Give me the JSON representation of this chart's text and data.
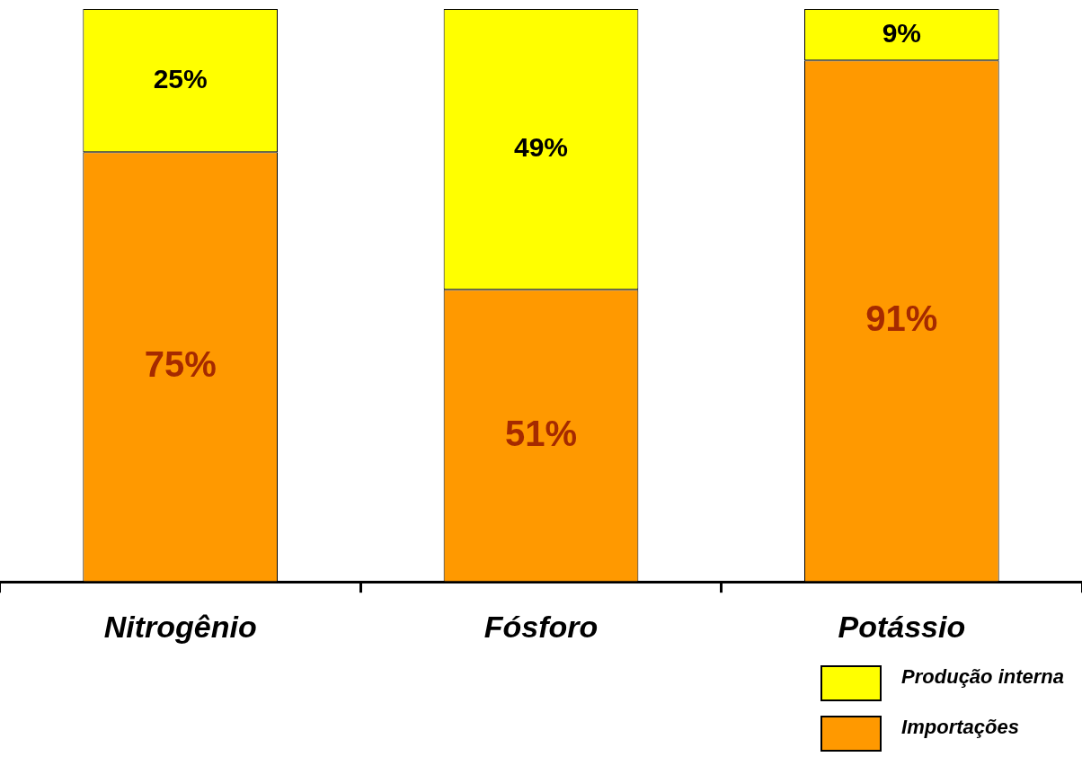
{
  "chart_data": {
    "type": "bar",
    "stacked": true,
    "legend": "bottom right",
    "ylim": [
      0,
      100
    ],
    "categories": [
      "Nitrogênio",
      "Fósforo",
      "Potássio"
    ],
    "series": [
      {
        "name": "Importações",
        "color": "#ff9900",
        "values": [
          75,
          51,
          91
        ],
        "value_labels": [
          "75%",
          "51%",
          "91%"
        ]
      },
      {
        "name": "Produção interna",
        "color": "#ffff00",
        "values": [
          25,
          49,
          9
        ],
        "value_labels": [
          "25%",
          "49%",
          "9%"
        ]
      }
    ]
  }
}
